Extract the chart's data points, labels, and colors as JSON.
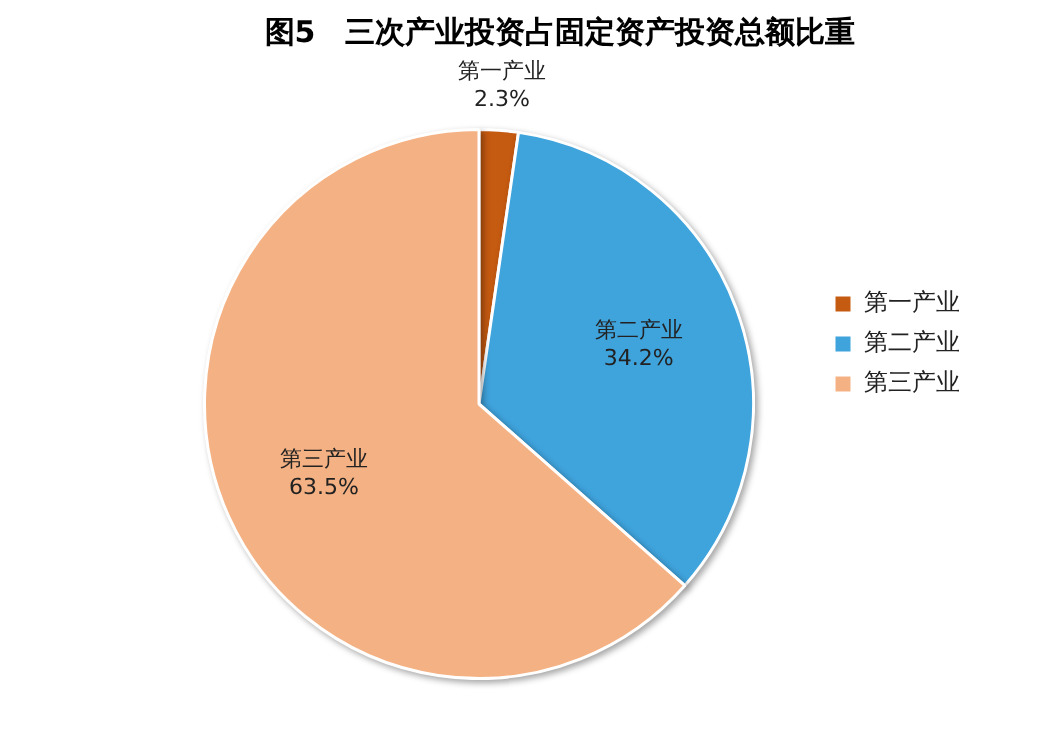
{
  "chart_data": {
    "type": "pie",
    "title": "图5　三次产业投资占固定资产投资总额比重",
    "categories": [
      "第一产业",
      "第二产业",
      "第三产业"
    ],
    "values": [
      2.3,
      34.2,
      63.5
    ],
    "value_labels": [
      "2.3%",
      "34.2%",
      "63.5%"
    ],
    "colors": [
      "#c55a11",
      "#3fa3dc",
      "#f4b183"
    ],
    "legend": "right"
  }
}
